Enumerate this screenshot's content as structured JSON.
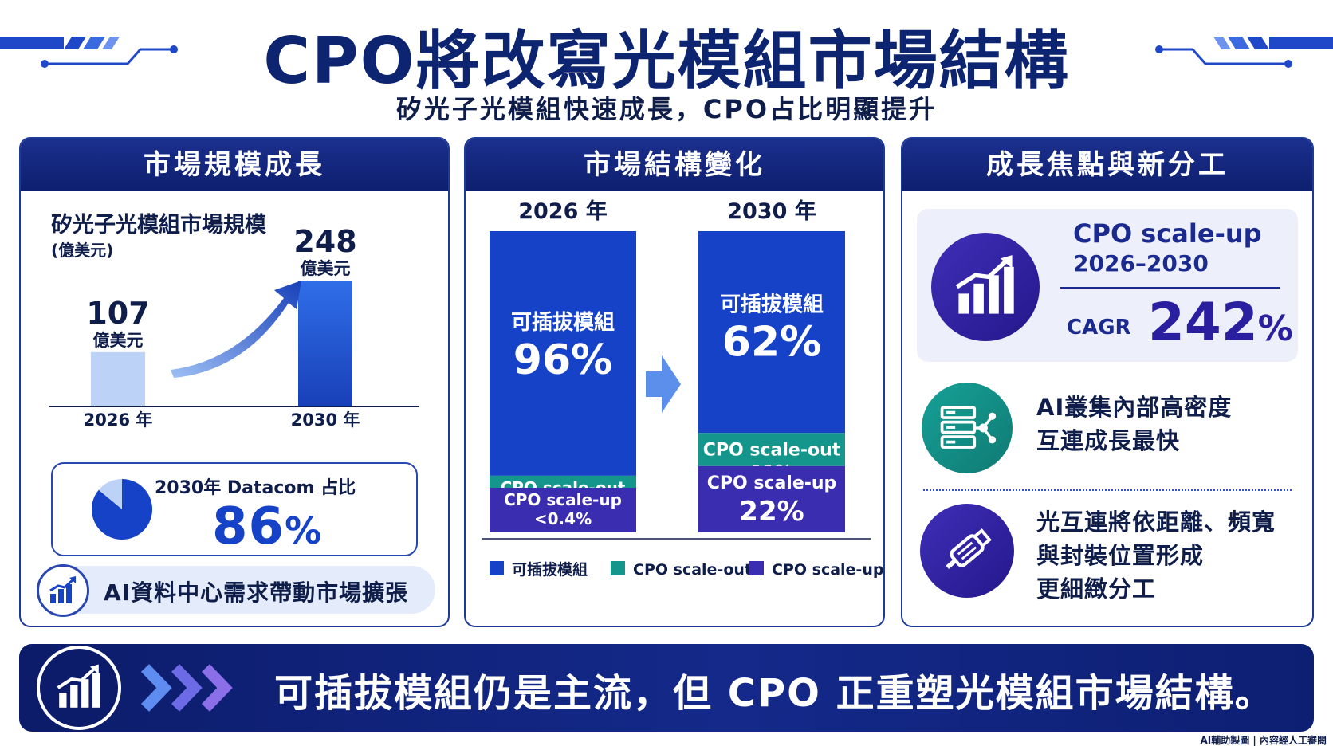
{
  "header": {
    "title": "CPO將改寫光模組市場結構",
    "subtitle": "矽光子光模組快速成長，CPO占比明顯提升"
  },
  "colors": {
    "navy": "#0d1f6e",
    "pluggable": "#1642c8",
    "scale_out": "#15968c",
    "scale_up": "#3b2db0",
    "light_bar": "#bcd3f7"
  },
  "panel_market_size": {
    "heading": "市場規模成長",
    "label": "矽光子光模組市場規模",
    "unit": "(億美元)",
    "pie_card": {
      "label": "2030年 Datacom 占比",
      "value": "86",
      "percent_sign": "%",
      "share": 0.86
    },
    "pill_text": "AI資料中心需求帶動市場擴張",
    "icon": "growth-chart-icon"
  },
  "panel_structure": {
    "heading": "市場結構變化",
    "icon": "right-arrow-icon"
  },
  "panel_focus": {
    "heading": "成長焦點與新分工",
    "cagr": {
      "title": "CPO scale-up",
      "period": "2026–2030",
      "label": "CAGR",
      "value": "242",
      "percent_sign": "%",
      "icon": "growth-chart-icon"
    },
    "features": [
      {
        "lines": [
          "AI叢集內部高密度",
          "互連成長最快"
        ],
        "icon": "server-network-icon"
      },
      {
        "lines": [
          "光互連將依距離、頻寬",
          "與封裝位置形成",
          "更細緻分工"
        ],
        "icon": "optical-cable-icon"
      }
    ]
  },
  "banner": {
    "text": "可插拔模組仍是主流，但 CPO 正重塑光模組市場結構。",
    "icon": "growth-chart-icon"
  },
  "credit": "AI輔助製圖 | 內容經人工審閱",
  "chart_data": [
    {
      "type": "bar",
      "categories": [
        "2026 年",
        "2030 年"
      ],
      "values": [
        107,
        248
      ],
      "value_labels": [
        "107",
        "248"
      ],
      "value_unit": "億美元",
      "ylim": [
        0,
        270
      ]
    },
    {
      "type": "bar",
      "stacked": true,
      "categories": [
        "2026 年",
        "2030 年"
      ],
      "series": [
        {
          "name": "可插拔模組",
          "values": [
            96,
            62
          ],
          "labels": [
            "96%",
            "62%"
          ],
          "color": "#1642c8"
        },
        {
          "name": "CPO scale-out",
          "values": [
            4,
            11
          ],
          "labels": [
            "4%",
            "11%"
          ],
          "color": "#15968c"
        },
        {
          "name": "CPO scale-up",
          "values": [
            0.4,
            22
          ],
          "labels": [
            "<0.4%",
            "22%"
          ],
          "color": "#3b2db0"
        }
      ],
      "legend": [
        "可插拔模組",
        "CPO scale-out",
        "CPO scale-up"
      ]
    }
  ]
}
